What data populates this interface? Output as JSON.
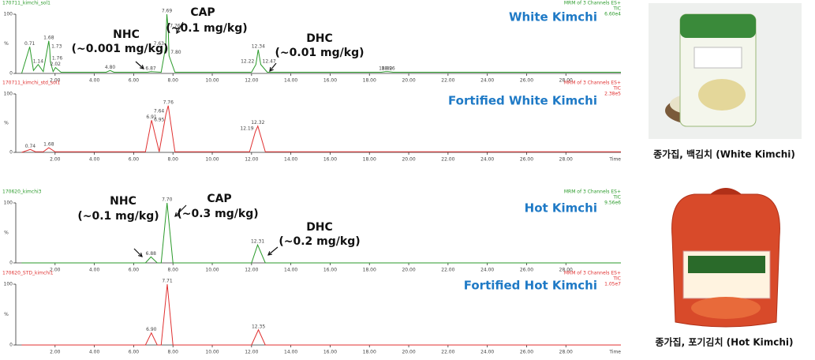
{
  "chart_data": [
    {
      "type": "line",
      "title": "White Kimchi",
      "file": "170711_kimchi_sol1",
      "header": [
        "MRM of 3 Channels ES+",
        "TIC",
        "6.60e4"
      ],
      "ylabel": "%",
      "xlim": [
        0,
        30.8
      ],
      "ylim": [
        0,
        100
      ],
      "xticks": [
        {
          "value": 2,
          "label": "2.00"
        },
        {
          "value": 4,
          "label": "4.00"
        },
        {
          "value": 6,
          "label": "6.00"
        },
        {
          "value": 8,
          "label": "8.00"
        },
        {
          "value": 10,
          "label": "10.00"
        },
        {
          "value": 12,
          "label": "12.00"
        },
        {
          "value": 14,
          "label": "14.00"
        },
        {
          "value": 16,
          "label": "16.00"
        },
        {
          "value": 18,
          "label": "18.00"
        },
        {
          "value": 20,
          "label": "20.00"
        },
        {
          "value": 22,
          "label": "22.00"
        },
        {
          "value": 24,
          "label": "24.00"
        },
        {
          "value": 26,
          "label": "26.00"
        },
        {
          "value": 28,
          "label": "28.00"
        }
      ],
      "yticks": [
        0,
        100
      ],
      "series": [
        {
          "color": "#2a9a2a",
          "x": [
            0.3,
            0.71,
            0.9,
            1.14,
            1.4,
            1.68,
            1.73,
            1.76,
            1.9,
            2.02,
            2.3,
            4.6,
            4.8,
            5.0,
            6.7,
            6.87,
            7.4,
            7.63,
            7.69,
            7.76,
            7.8,
            8.1,
            12.0,
            12.22,
            12.34,
            12.47,
            12.8,
            18.6,
            18.82,
            18.96,
            19.2,
            30.8
          ],
          "values": [
            0,
            45,
            5,
            15,
            3,
            55,
            40,
            20,
            3,
            10,
            2,
            2,
            5,
            2,
            2,
            3,
            2,
            45,
            100,
            75,
            30,
            2,
            2,
            15,
            40,
            15,
            2,
            2,
            3,
            3,
            2,
            2
          ],
          "x_labels": [
            null,
            "0.71",
            null,
            "1.14",
            null,
            "1.68",
            "1.73",
            "1.76",
            null,
            "2.02",
            null,
            null,
            "4.80",
            null,
            null,
            "6.87",
            null,
            "7.63",
            "7.69",
            "7.76",
            "7.80",
            null,
            null,
            "12.22",
            "12.34",
            "12.47",
            null,
            null,
            "18.82",
            "18.96",
            null,
            null
          ]
        }
      ],
      "annotations": [
        "NHC",
        "(~0.001 mg/kg)",
        "CAP",
        "(~0.1 mg/kg)",
        "DHC",
        "(~0.01 mg/kg)"
      ]
    },
    {
      "type": "line",
      "title": "Fortified White Kimchi",
      "file": "170711_kimchi_std_sol1",
      "header": [
        "MRM of 3 Channels ES+",
        "TIC",
        "2.38e5"
      ],
      "ylabel": "%",
      "xlabel": "Time",
      "xlim": [
        0,
        30.8
      ],
      "ylim": [
        0,
        100
      ],
      "xticks": [
        {
          "value": 2,
          "label": "2.00"
        },
        {
          "value": 4,
          "label": "4.00"
        },
        {
          "value": 6,
          "label": "6.00"
        },
        {
          "value": 8,
          "label": "8.00"
        },
        {
          "value": 10,
          "label": "10.00"
        },
        {
          "value": 12,
          "label": "12.00"
        },
        {
          "value": 14,
          "label": "14.00"
        },
        {
          "value": 16,
          "label": "16.00"
        },
        {
          "value": 18,
          "label": "18.00"
        },
        {
          "value": 20,
          "label": "20.00"
        },
        {
          "value": 22,
          "label": "22.00"
        },
        {
          "value": 24,
          "label": "24.00"
        },
        {
          "value": 26,
          "label": "26.00"
        },
        {
          "value": 28,
          "label": "28.00"
        }
      ],
      "yticks": [
        0,
        100
      ],
      "series": [
        {
          "color": "#e03030",
          "x": [
            0.3,
            0.74,
            1.0,
            1.4,
            1.68,
            2.0,
            6.6,
            6.91,
            6.95,
            7.3,
            7.64,
            7.76,
            8.1,
            11.9,
            12.19,
            12.32,
            12.7,
            30.8
          ],
          "values": [
            0,
            5,
            1,
            1,
            8,
            1,
            1,
            55,
            50,
            1,
            65,
            80,
            1,
            1,
            35,
            45,
            1,
            1
          ],
          "x_labels": [
            null,
            "0.74",
            null,
            null,
            "1.68",
            null,
            null,
            "6.91",
            "6.95",
            null,
            "7.64",
            "7.76",
            null,
            null,
            "12.19",
            "12.32",
            null,
            null
          ]
        }
      ],
      "annotations": []
    },
    {
      "type": "line",
      "title": "Hot Kimchi",
      "file": "170620_kimchi3",
      "header": [
        "MRM of 3 Channels ES+",
        "TIC",
        "9.56e6"
      ],
      "ylabel": "%",
      "xlim": [
        0,
        30.8
      ],
      "ylim": [
        0,
        100
      ],
      "xticks": [
        {
          "value": 2,
          "label": "2.00"
        },
        {
          "value": 4,
          "label": "4.00"
        },
        {
          "value": 6,
          "label": "6.00"
        },
        {
          "value": 8,
          "label": "8.00"
        },
        {
          "value": 10,
          "label": "10.00"
        },
        {
          "value": 12,
          "label": "12.00"
        },
        {
          "value": 14,
          "label": "14.00"
        },
        {
          "value": 16,
          "label": "16.00"
        },
        {
          "value": 18,
          "label": "18.00"
        },
        {
          "value": 20,
          "label": "20.00"
        },
        {
          "value": 22,
          "label": "22.00"
        },
        {
          "value": 24,
          "label": "24.00"
        },
        {
          "value": 26,
          "label": "26.00"
        },
        {
          "value": 28,
          "label": "28.00"
        }
      ],
      "yticks": [
        0,
        100
      ],
      "series": [
        {
          "color": "#2a9a2a",
          "x": [
            0.3,
            6.6,
            6.88,
            7.2,
            7.4,
            7.7,
            8.0,
            12.0,
            12.31,
            12.7,
            30.8
          ],
          "values": [
            0,
            0,
            10,
            0,
            0,
            100,
            0,
            0,
            30,
            0,
            0
          ],
          "x_labels": [
            null,
            null,
            "6.88",
            null,
            null,
            "7.70",
            null,
            null,
            "12.31",
            null,
            null
          ]
        }
      ],
      "annotations": [
        "NHC",
        "(~0.1 mg/kg)",
        "CAP",
        "(~0.3 mg/kg)",
        "DHC",
        "(~0.2 mg/kg)"
      ]
    },
    {
      "type": "line",
      "title": "Fortified Hot Kimchi",
      "file": "170620_STD_kimchi1",
      "header": [
        "MRM of 3 Channels ES+",
        "TIC",
        "1.05e7"
      ],
      "ylabel": "%",
      "xlabel": "Time",
      "xlim": [
        0,
        30.8
      ],
      "ylim": [
        0,
        100
      ],
      "xticks": [
        {
          "value": 2,
          "label": "2.00"
        },
        {
          "value": 4,
          "label": "4.00"
        },
        {
          "value": 6,
          "label": "6.00"
        },
        {
          "value": 8,
          "label": "8.00"
        },
        {
          "value": 10,
          "label": "10.00"
        },
        {
          "value": 12,
          "label": "12.00"
        },
        {
          "value": 14,
          "label": "14.00"
        },
        {
          "value": 16,
          "label": "16.00"
        },
        {
          "value": 18,
          "label": "18.00"
        },
        {
          "value": 20,
          "label": "20.00"
        },
        {
          "value": 22,
          "label": "22.00"
        },
        {
          "value": 24,
          "label": "24.00"
        },
        {
          "value": 26,
          "label": "26.00"
        },
        {
          "value": 28,
          "label": "28.00"
        }
      ],
      "yticks": [
        0,
        100
      ],
      "series": [
        {
          "color": "#e03030",
          "x": [
            0.3,
            6.6,
            6.9,
            7.2,
            7.4,
            7.71,
            8.0,
            12.0,
            12.35,
            12.7,
            30.8
          ],
          "values": [
            0,
            0,
            20,
            0,
            0,
            100,
            0,
            0,
            25,
            0,
            0
          ],
          "x_labels": [
            null,
            null,
            "6.90",
            null,
            null,
            "7.71",
            null,
            null,
            "12.35",
            null,
            null
          ]
        }
      ],
      "annotations": []
    }
  ],
  "captions": [
    "종가집, 백김치 (White Kimchi)",
    "종가집, 포기김치 (Hot Kimchi)"
  ]
}
